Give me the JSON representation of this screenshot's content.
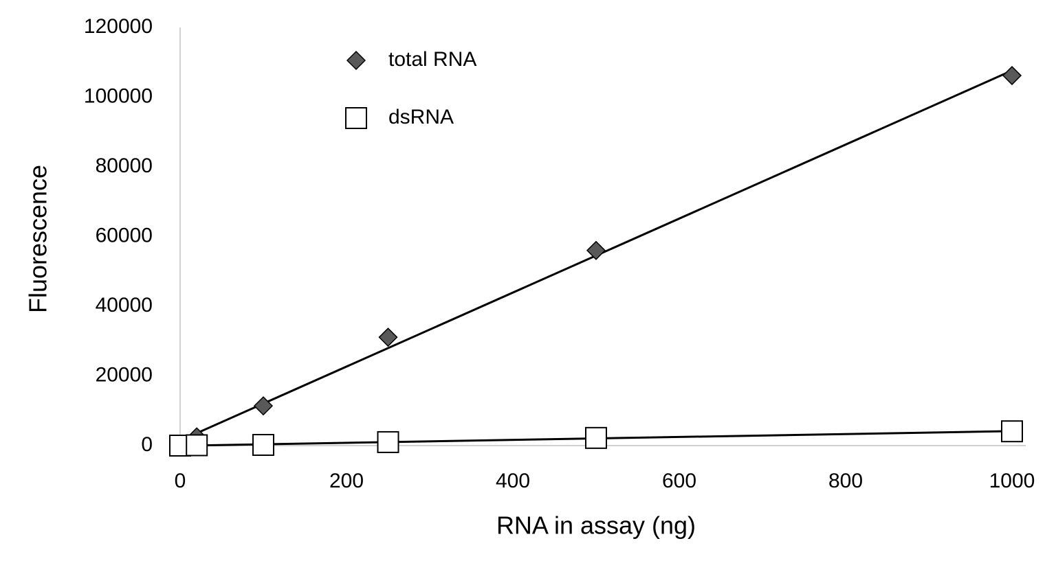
{
  "chart_data": {
    "type": "scatter",
    "x_label": "RNA in assay (ng)",
    "y_label": "Fluorescence",
    "xlim": [
      0,
      1000
    ],
    "xticks": [
      0,
      200,
      400,
      600,
      800,
      1000
    ],
    "ylim": [
      0,
      120000
    ],
    "yticks": [
      0,
      20000,
      40000,
      60000,
      80000,
      100000,
      120000
    ],
    "grid": false,
    "trendline": true,
    "legend": "top",
    "series": [
      {
        "name": "total RNA",
        "marker": "diamond",
        "color": "#595959",
        "x": [
          0,
          20,
          100,
          250,
          500,
          1000
        ],
        "values": [
          0,
          2500,
          11400,
          31100,
          56000,
          106200
        ]
      },
      {
        "name": "dsRNA",
        "marker": "square",
        "color": "#ffffff",
        "x": [
          0,
          20,
          100,
          250,
          500,
          1000
        ],
        "values": [
          0,
          100,
          200,
          1000,
          2200,
          4100
        ]
      }
    ]
  }
}
